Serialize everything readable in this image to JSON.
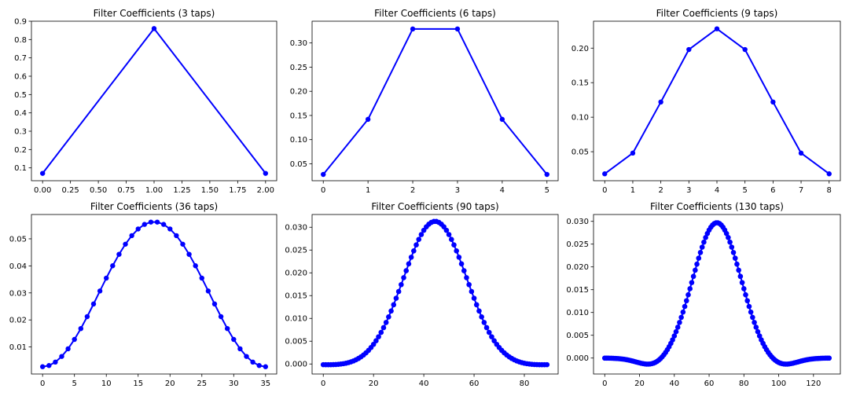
{
  "figure": {
    "line_color": "#0000ff",
    "axes_color": "#000000",
    "background": "#ffffff"
  },
  "chart_data": [
    {
      "type": "line",
      "title": "Filter Coefficients (3 taps)",
      "xlim": [
        -0.1,
        2.1
      ],
      "ylim": [
        0.03,
        0.9
      ],
      "xticks": [
        0,
        0.25,
        0.5,
        0.75,
        1.0,
        1.25,
        1.5,
        1.75,
        2.0
      ],
      "xtick_labels": [
        "0.00",
        "0.25",
        "0.50",
        "0.75",
        "1.00",
        "1.25",
        "1.50",
        "1.75",
        "2.00"
      ],
      "yticks": [
        0.1,
        0.2,
        0.3,
        0.4,
        0.5,
        0.6,
        0.7,
        0.8,
        0.9
      ],
      "ytick_labels": [
        "0.1",
        "0.2",
        "0.3",
        "0.4",
        "0.5",
        "0.6",
        "0.7",
        "0.8",
        "0.9"
      ],
      "gen": {
        "kind": "raw",
        "values": [
          0.07,
          0.86,
          0.07
        ]
      }
    },
    {
      "type": "line",
      "title": "Filter Coefficients (6 taps)",
      "xlim": [
        -0.25,
        5.25
      ],
      "ylim": [
        0.015,
        0.345
      ],
      "xticks": [
        0,
        1,
        2,
        3,
        4,
        5
      ],
      "xtick_labels": [
        "0",
        "1",
        "2",
        "3",
        "4",
        "5"
      ],
      "yticks": [
        0.05,
        0.1,
        0.15,
        0.2,
        0.25,
        0.3
      ],
      "ytick_labels": [
        "0.05",
        "0.10",
        "0.15",
        "0.20",
        "0.25",
        "0.30"
      ],
      "gen": {
        "kind": "raw",
        "values": [
          0.028,
          0.142,
          0.329,
          0.329,
          0.142,
          0.028
        ]
      }
    },
    {
      "type": "line",
      "title": "Filter Coefficients (9 taps)",
      "xlim": [
        -0.4,
        8.4
      ],
      "ylim": [
        0.008,
        0.239
      ],
      "xticks": [
        0,
        1,
        2,
        3,
        4,
        5,
        6,
        7,
        8
      ],
      "xtick_labels": [
        "0",
        "1",
        "2",
        "3",
        "4",
        "5",
        "6",
        "7",
        "8"
      ],
      "yticks": [
        0.05,
        0.1,
        0.15,
        0.2
      ],
      "ytick_labels": [
        "0.05",
        "0.10",
        "0.15",
        "0.20"
      ],
      "gen": {
        "kind": "raw",
        "values": [
          0.018,
          0.048,
          0.122,
          0.198,
          0.228,
          0.198,
          0.122,
          0.048,
          0.018
        ]
      }
    },
    {
      "type": "line",
      "title": "Filter Coefficients (36 taps)",
      "xlim": [
        -1.75,
        36.75
      ],
      "ylim": [
        0.0,
        0.059
      ],
      "xticks": [
        0,
        5,
        10,
        15,
        20,
        25,
        30,
        35
      ],
      "xtick_labels": [
        "0",
        "5",
        "10",
        "15",
        "20",
        "25",
        "30",
        "35"
      ],
      "yticks": [
        0.01,
        0.02,
        0.03,
        0.04,
        0.05
      ],
      "ytick_labels": [
        "0.01",
        "0.02",
        "0.03",
        "0.04",
        "0.05"
      ],
      "gen": {
        "kind": "hamming",
        "n": 36,
        "peak": 0.0563,
        "floor": 0.0027
      }
    },
    {
      "type": "line",
      "title": "Filter Coefficients (90 taps)",
      "xlim": [
        -4.45,
        93.45
      ],
      "ylim": [
        -0.0022,
        0.0328
      ],
      "xticks": [
        0,
        20,
        40,
        60,
        80
      ],
      "xtick_labels": [
        "0",
        "20",
        "40",
        "60",
        "80"
      ],
      "yticks": [
        0.0,
        0.005,
        0.01,
        0.015,
        0.02,
        0.025,
        0.03
      ],
      "ytick_labels": [
        "0.000",
        "0.005",
        "0.010",
        "0.015",
        "0.020",
        "0.025",
        "0.030"
      ],
      "gen": {
        "kind": "gauss_sinc",
        "n": 90,
        "peak": 0.0313,
        "sigma": 12.5,
        "dip": 0.0004,
        "dip_sigma": 10
      }
    },
    {
      "type": "line",
      "title": "Filter Coefficients (130 taps)",
      "xlim": [
        -6.45,
        135.45
      ],
      "ylim": [
        -0.0035,
        0.0315
      ],
      "xticks": [
        0,
        20,
        40,
        60,
        80,
        100,
        120
      ],
      "xtick_labels": [
        "0",
        "20",
        "40",
        "60",
        "80",
        "100",
        "120"
      ],
      "yticks": [
        0.0,
        0.005,
        0.01,
        0.015,
        0.02,
        0.025,
        0.03
      ],
      "ytick_labels": [
        "0.000",
        "0.005",
        "0.010",
        "0.015",
        "0.020",
        "0.025",
        "0.030"
      ],
      "gen": {
        "kind": "gauss_sinc",
        "n": 130,
        "peak": 0.0297,
        "sigma": 13.5,
        "dip": 0.0019,
        "dip_sigma": 9
      }
    }
  ]
}
